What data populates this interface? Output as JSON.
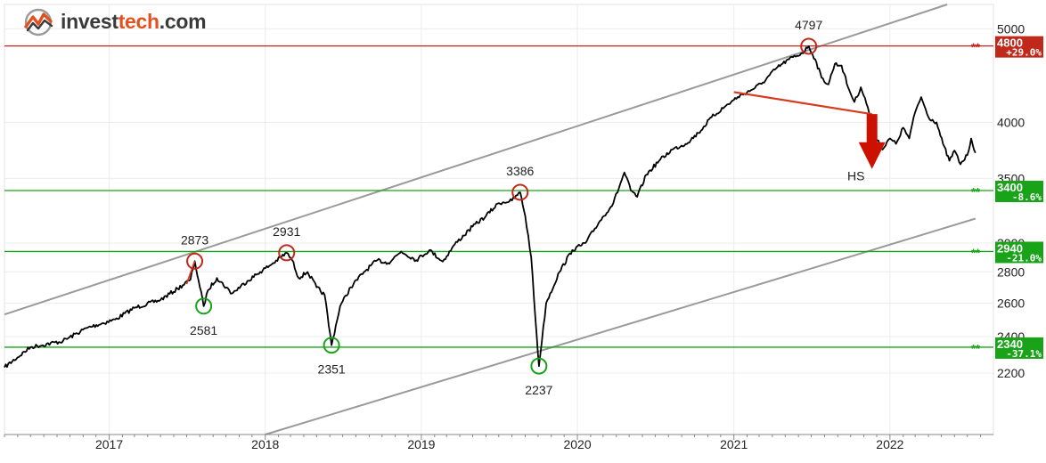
{
  "brand": {
    "name_part1": "invest",
    "name_part2": "tech",
    "name_part3": ".com",
    "logo_icon": "investtech-chart-logo-icon",
    "colors": {
      "dark": "#3a3a3a",
      "accent": "#e2521f"
    }
  },
  "chart_data": {
    "type": "line",
    "title": "",
    "xlabel": "",
    "ylabel": "",
    "yscale": "log",
    "grid": true,
    "x_range": [
      "2016-05-01",
      "2022-08-31"
    ],
    "ylim": [
      1900,
      5300
    ],
    "x_ticks": [
      "2017",
      "2018",
      "2019",
      "2020",
      "2021",
      "2022"
    ],
    "y_ticks": [
      "2200",
      "2400",
      "2600",
      "2800",
      "3000",
      "3500",
      "4000",
      "5000"
    ],
    "series": [
      {
        "color": "#000000",
        "points": [
          [
            "2016-05-01",
            2230
          ],
          [
            "2016-07-01",
            2340
          ],
          [
            "2016-09-15",
            2375
          ],
          [
            "2016-11-10",
            2450
          ],
          [
            "2017-01-15",
            2500
          ],
          [
            "2017-03-01",
            2570
          ],
          [
            "2017-05-01",
            2620
          ],
          [
            "2017-06-10",
            2690
          ],
          [
            "2017-07-10",
            2750
          ],
          [
            "2017-07-20",
            2873
          ],
          [
            "2017-08-01",
            2700
          ],
          [
            "2017-08-10",
            2581
          ],
          [
            "2017-08-20",
            2680
          ],
          [
            "2017-09-10",
            2760
          ],
          [
            "2017-10-15",
            2660
          ],
          [
            "2017-11-20",
            2740
          ],
          [
            "2017-12-20",
            2800
          ],
          [
            "2018-01-20",
            2860
          ],
          [
            "2018-02-20",
            2931
          ],
          [
            "2018-03-05",
            2880
          ],
          [
            "2018-03-20",
            2760
          ],
          [
            "2018-04-10",
            2800
          ],
          [
            "2018-05-01",
            2700
          ],
          [
            "2018-05-20",
            2650
          ],
          [
            "2018-06-05",
            2351
          ],
          [
            "2018-06-25",
            2580
          ],
          [
            "2018-07-20",
            2700
          ],
          [
            "2018-08-20",
            2800
          ],
          [
            "2018-09-20",
            2880
          ],
          [
            "2018-10-15",
            2860
          ],
          [
            "2018-11-15",
            2940
          ],
          [
            "2018-12-20",
            2880
          ],
          [
            "2019-01-20",
            2950
          ],
          [
            "2019-02-20",
            2870
          ],
          [
            "2019-03-20",
            2990
          ],
          [
            "2019-05-01",
            3120
          ],
          [
            "2019-06-01",
            3200
          ],
          [
            "2019-07-01",
            3300
          ],
          [
            "2019-08-01",
            3320
          ],
          [
            "2019-08-20",
            3386
          ],
          [
            "2019-09-01",
            3200
          ],
          [
            "2019-09-15",
            2900
          ],
          [
            "2019-09-25",
            2500
          ],
          [
            "2019-10-03",
            2237
          ],
          [
            "2019-10-20",
            2600
          ],
          [
            "2019-11-20",
            2800
          ],
          [
            "2019-12-20",
            2950
          ],
          [
            "2020-01-20",
            3000
          ],
          [
            "2020-02-20",
            3150
          ],
          [
            "2020-03-25",
            3300
          ],
          [
            "2020-04-20",
            3550
          ],
          [
            "2020-05-05",
            3400
          ],
          [
            "2020-05-20",
            3350
          ],
          [
            "2020-06-10",
            3530
          ],
          [
            "2020-07-10",
            3650
          ],
          [
            "2020-08-10",
            3750
          ],
          [
            "2020-09-10",
            3800
          ],
          [
            "2020-10-10",
            3900
          ],
          [
            "2020-11-10",
            4050
          ],
          [
            "2020-12-10",
            4150
          ],
          [
            "2021-01-10",
            4250
          ],
          [
            "2021-02-10",
            4320
          ],
          [
            "2021-03-10",
            4400
          ],
          [
            "2021-04-10",
            4550
          ],
          [
            "2021-05-10",
            4650
          ],
          [
            "2021-06-10",
            4720
          ],
          [
            "2021-06-25",
            4797
          ],
          [
            "2021-07-10",
            4650
          ],
          [
            "2021-07-25",
            4450
          ],
          [
            "2021-08-10",
            4380
          ],
          [
            "2021-08-25",
            4600
          ],
          [
            "2021-09-10",
            4580
          ],
          [
            "2021-09-25",
            4350
          ],
          [
            "2021-10-10",
            4200
          ],
          [
            "2021-10-25",
            4350
          ],
          [
            "2021-11-10",
            4150
          ],
          [
            "2021-11-25",
            3900
          ],
          [
            "2021-12-15",
            3750
          ],
          [
            "2022-01-01",
            3850
          ],
          [
            "2022-01-15",
            3800
          ],
          [
            "2022-02-01",
            3950
          ],
          [
            "2022-02-15",
            3850
          ],
          [
            "2022-03-01",
            4100
          ],
          [
            "2022-03-15",
            4250
          ],
          [
            "2022-04-01",
            4050
          ],
          [
            "2022-04-20",
            4000
          ],
          [
            "2022-05-05",
            3800
          ],
          [
            "2022-05-20",
            3650
          ],
          [
            "2022-06-01",
            3740
          ],
          [
            "2022-06-15",
            3620
          ],
          [
            "2022-07-01",
            3700
          ],
          [
            "2022-07-10",
            3850
          ],
          [
            "2022-07-20",
            3720
          ]
        ]
      }
    ],
    "trend_channel": {
      "color": "#9a9a9a",
      "upper": [
        [
          "2016-05-01",
          2530
        ],
        [
          "2022-05-15",
          5300
        ]
      ],
      "lower": [
        [
          "2018-01-01",
          1900
        ],
        [
          "2022-07-20",
          3180
        ]
      ]
    },
    "horizontal_levels": [
      {
        "value": 4800,
        "label": "4800",
        "pct": "+29.0%",
        "color": "#c0281a",
        "stars": "**"
      },
      {
        "value": 3400,
        "label": "3400",
        "pct": "-8.6%",
        "color": "#19a319",
        "stars": "**"
      },
      {
        "value": 2940,
        "label": "2940",
        "pct": "-21.0%",
        "color": "#19a319",
        "stars": "**"
      },
      {
        "value": 2340,
        "label": "2340",
        "pct": "-37.1%",
        "color": "#19a319",
        "stars": "**"
      }
    ],
    "highs": [
      {
        "date": "2017-07-20",
        "value": 2873,
        "label": "2873"
      },
      {
        "date": "2018-02-20",
        "value": 2931,
        "label": "2931"
      },
      {
        "date": "2019-08-20",
        "value": 3386,
        "label": "3386"
      },
      {
        "date": "2021-06-25",
        "value": 4797,
        "label": "4797"
      }
    ],
    "lows": [
      {
        "date": "2017-08-10",
        "value": 2581,
        "label": "2581"
      },
      {
        "date": "2018-06-05",
        "value": 2351,
        "label": "2351"
      },
      {
        "date": "2019-10-03",
        "value": 2237,
        "label": "2237"
      }
    ],
    "colors": {
      "high_circle": "#c0281a",
      "low_circle": "#19a319",
      "neckline": "#d63b1f",
      "arrow": "#cc1100"
    },
    "red_segment": [
      [
        "2017-07-01",
        2720
      ],
      [
        "2017-07-20",
        2873
      ]
    ],
    "pattern": {
      "label": "HS",
      "neckline": [
        [
          "2021-01-01",
          4300
        ],
        [
          "2021-11-20",
          4080
        ]
      ],
      "arrow": {
        "date": "2021-11-20",
        "from": 4080,
        "to": 3580
      }
    }
  }
}
